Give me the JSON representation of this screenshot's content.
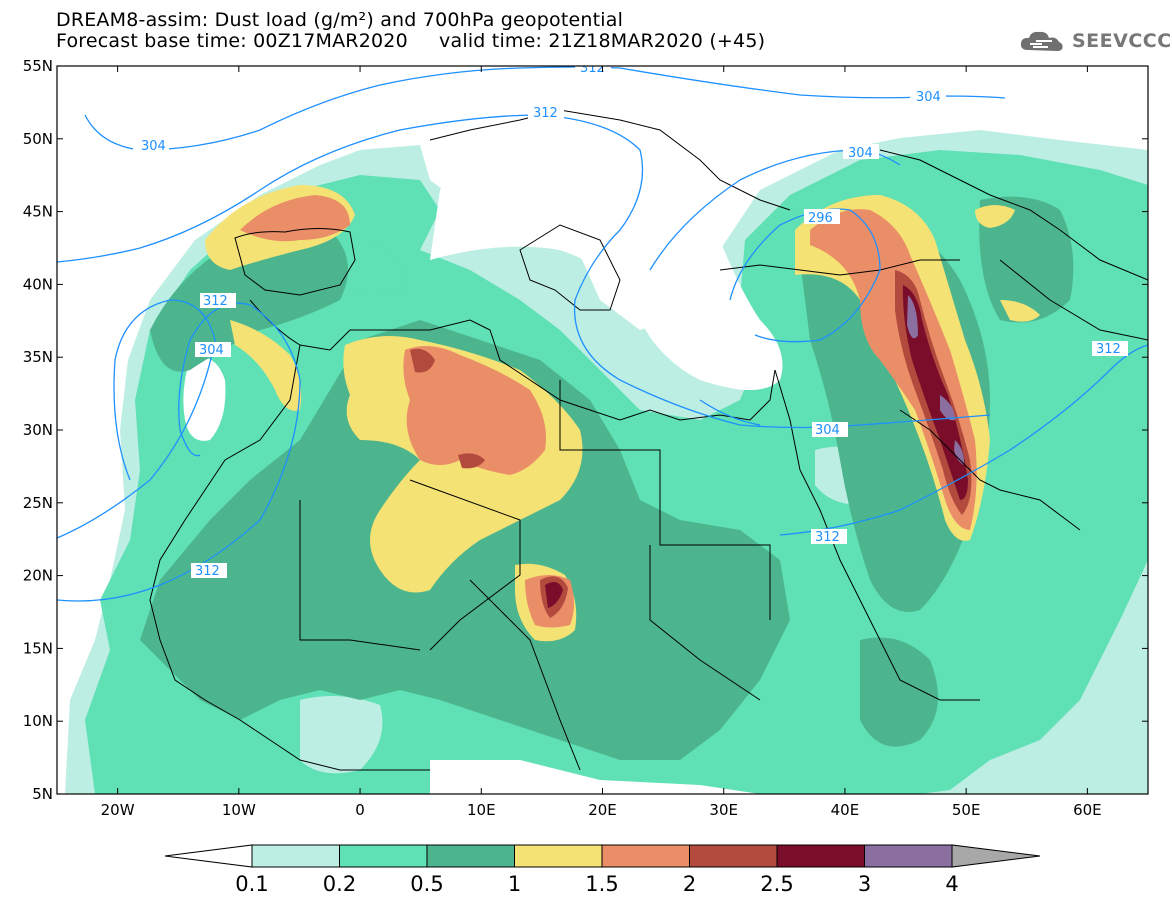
{
  "header": {
    "title_line1": "DREAM8-assim: Dust load (g/m²) and 700hPa geopotential",
    "title_line2": "Forecast base time: 00Z17MAR2020     valid time: 21Z18MAR2020 (+45)",
    "logo_text": "SEEVCCC"
  },
  "axes": {
    "lat_labels": [
      "55N",
      "50N",
      "45N",
      "40N",
      "35N",
      "30N",
      "25N",
      "20N",
      "15N",
      "10N",
      "5N"
    ],
    "lon_labels": [
      "20W",
      "10W",
      "0",
      "10E",
      "20E",
      "30E",
      "40E",
      "50E",
      "60E"
    ]
  },
  "contours": {
    "color": "#1e90ff",
    "labels": [
      "304",
      "312",
      "304",
      "304",
      "312",
      "304",
      "296",
      "304",
      "312",
      "312",
      "312",
      "312"
    ]
  },
  "colorbar": {
    "labels": [
      "0.1",
      "0.2",
      "0.5",
      "1",
      "1.5",
      "2",
      "2.5",
      "3",
      "4"
    ],
    "colors": [
      "#ffffff",
      "#bdeee3",
      "#5fe0b5",
      "#4cb58e",
      "#f5e275",
      "#ea8e67",
      "#b24a3d",
      "#7a0d2a",
      "#8a6fa0",
      "#a8a8a8"
    ]
  },
  "chart_data": {
    "type": "heatmap",
    "title": "DREAM8-assim: Dust load (g/m²) and 700hPa geopotential",
    "xlabel": "",
    "ylabel": "",
    "x_ticks": [
      "20W",
      "10W",
      "0",
      "10E",
      "20E",
      "30E",
      "40E",
      "50E",
      "60E"
    ],
    "y_ticks": [
      "55N",
      "50N",
      "45N",
      "40N",
      "35N",
      "30N",
      "25N",
      "20N",
      "15N",
      "10N",
      "5N"
    ],
    "xlim": [
      -25,
      65
    ],
    "ylim": [
      5,
      55
    ],
    "levels": [
      0.1,
      0.2,
      0.5,
      1,
      1.5,
      2,
      2.5,
      3,
      4
    ],
    "contour_levels": [
      296,
      304,
      312
    ]
  }
}
